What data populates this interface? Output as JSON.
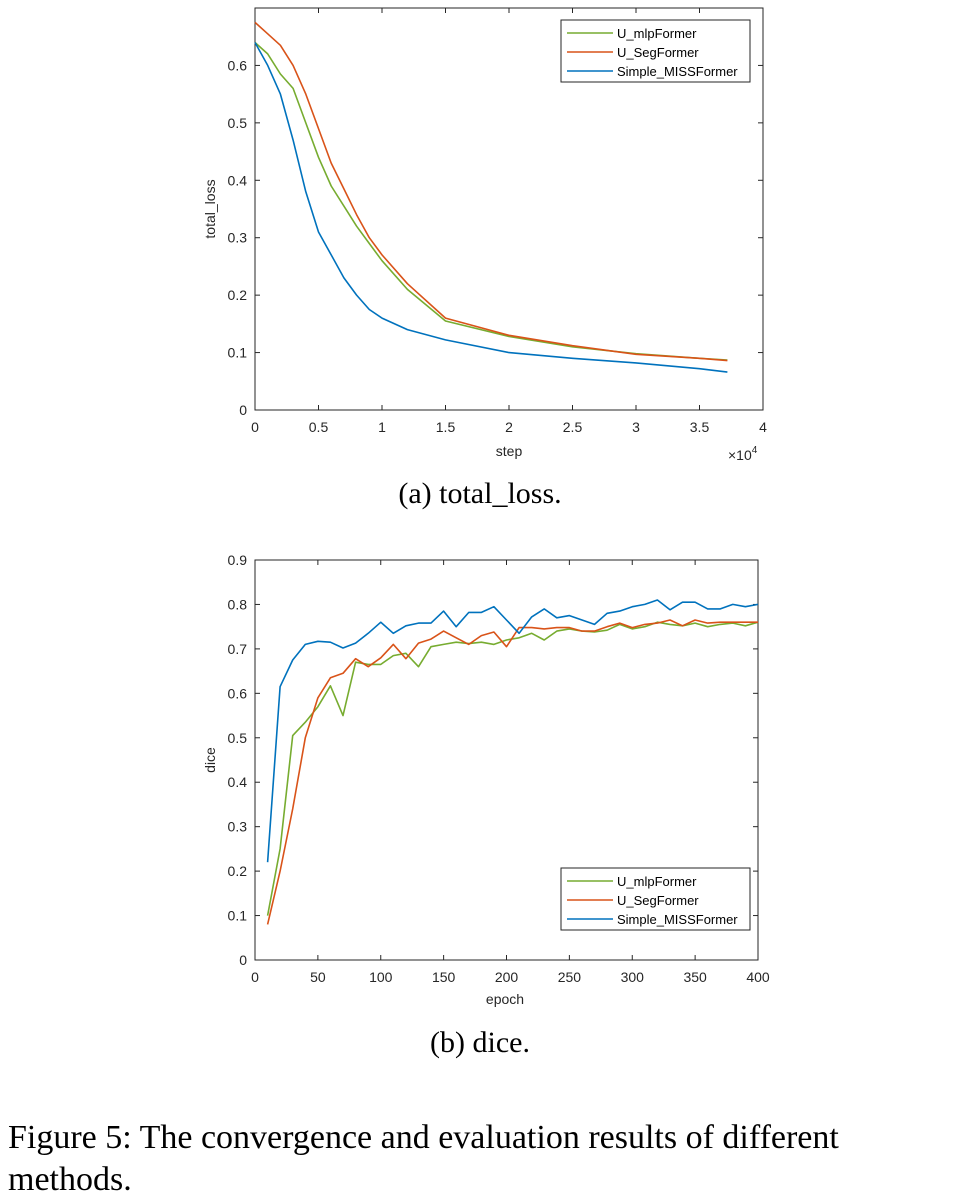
{
  "chart_data": [
    {
      "type": "line",
      "caption": "(a) total_loss.",
      "xlabel": "step",
      "ylabel": "total_loss",
      "x_multiplier": "×10",
      "x_multiplier_exp": "4",
      "xlim": [
        0,
        4
      ],
      "ylim": [
        0,
        0.7
      ],
      "xticks": [
        "0",
        "0.5",
        "1",
        "1.5",
        "2",
        "2.5",
        "3",
        "3.5",
        "4"
      ],
      "yticks": [
        "0",
        "0.1",
        "0.2",
        "0.3",
        "0.4",
        "0.5",
        "0.6"
      ],
      "legend_position": "top-right",
      "series": [
        {
          "name": "U_mlpFormer",
          "color": "#77ac30",
          "x": [
            0,
            0.1,
            0.2,
            0.3,
            0.4,
            0.5,
            0.6,
            0.7,
            0.8,
            0.9,
            1.0,
            1.2,
            1.5,
            2.0,
            2.5,
            3.0,
            3.5,
            3.72
          ],
          "y": [
            0.64,
            0.62,
            0.585,
            0.56,
            0.5,
            0.44,
            0.39,
            0.355,
            0.32,
            0.29,
            0.26,
            0.21,
            0.155,
            0.128,
            0.11,
            0.098,
            0.09,
            0.087
          ]
        },
        {
          "name": "U_SegFormer",
          "color": "#d95319",
          "x": [
            0,
            0.1,
            0.2,
            0.3,
            0.4,
            0.5,
            0.6,
            0.7,
            0.8,
            0.9,
            1.0,
            1.2,
            1.5,
            2.0,
            2.5,
            3.0,
            3.5,
            3.72
          ],
          "y": [
            0.675,
            0.655,
            0.635,
            0.6,
            0.55,
            0.49,
            0.43,
            0.385,
            0.34,
            0.3,
            0.27,
            0.22,
            0.16,
            0.13,
            0.112,
            0.097,
            0.09,
            0.086
          ]
        },
        {
          "name": "Simple_MISSFormer",
          "color": "#0072bd",
          "x": [
            0,
            0.1,
            0.2,
            0.3,
            0.4,
            0.5,
            0.6,
            0.7,
            0.8,
            0.9,
            1.0,
            1.2,
            1.5,
            2.0,
            2.5,
            3.0,
            3.5,
            3.72
          ],
          "y": [
            0.64,
            0.6,
            0.55,
            0.47,
            0.38,
            0.31,
            0.27,
            0.23,
            0.2,
            0.175,
            0.16,
            0.14,
            0.122,
            0.1,
            0.09,
            0.082,
            0.072,
            0.066
          ]
        }
      ]
    },
    {
      "type": "line",
      "caption": "(b) dice.",
      "xlabel": "epoch",
      "ylabel": "dice",
      "xlim": [
        0,
        400
      ],
      "ylim": [
        0,
        0.9
      ],
      "xticks": [
        "0",
        "50",
        "100",
        "150",
        "200",
        "250",
        "300",
        "350",
        "400"
      ],
      "yticks": [
        "0",
        "0.1",
        "0.2",
        "0.3",
        "0.4",
        "0.5",
        "0.6",
        "0.7",
        "0.8",
        "0.9"
      ],
      "legend_position": "bottom-right",
      "series": [
        {
          "name": "U_mlpFormer",
          "color": "#77ac30",
          "x": [
            10,
            20,
            30,
            40,
            50,
            60,
            70,
            80,
            90,
            100,
            110,
            120,
            130,
            140,
            150,
            160,
            170,
            180,
            190,
            200,
            210,
            220,
            230,
            240,
            250,
            260,
            270,
            280,
            290,
            300,
            310,
            320,
            330,
            340,
            350,
            360,
            370,
            380,
            390,
            400
          ],
          "y": [
            0.1,
            0.25,
            0.505,
            0.535,
            0.57,
            0.617,
            0.55,
            0.67,
            0.665,
            0.665,
            0.685,
            0.69,
            0.66,
            0.705,
            0.71,
            0.715,
            0.712,
            0.715,
            0.71,
            0.72,
            0.725,
            0.735,
            0.72,
            0.74,
            0.745,
            0.74,
            0.738,
            0.742,
            0.755,
            0.745,
            0.75,
            0.76,
            0.755,
            0.752,
            0.758,
            0.75,
            0.755,
            0.758,
            0.752,
            0.76
          ]
        },
        {
          "name": "U_SegFormer",
          "color": "#d95319",
          "x": [
            10,
            20,
            30,
            40,
            50,
            60,
            70,
            80,
            90,
            100,
            110,
            120,
            130,
            140,
            150,
            160,
            170,
            180,
            190,
            200,
            210,
            220,
            230,
            240,
            250,
            260,
            270,
            280,
            290,
            300,
            310,
            320,
            330,
            340,
            350,
            360,
            370,
            380,
            390,
            400
          ],
          "y": [
            0.08,
            0.2,
            0.34,
            0.5,
            0.59,
            0.635,
            0.645,
            0.678,
            0.66,
            0.68,
            0.71,
            0.678,
            0.713,
            0.722,
            0.74,
            0.725,
            0.71,
            0.73,
            0.738,
            0.705,
            0.748,
            0.748,
            0.745,
            0.748,
            0.748,
            0.74,
            0.74,
            0.75,
            0.758,
            0.748,
            0.755,
            0.758,
            0.765,
            0.752,
            0.765,
            0.758,
            0.76,
            0.76,
            0.76,
            0.76
          ]
        },
        {
          "name": "Simple_MISSFormer",
          "color": "#0072bd",
          "x": [
            10,
            20,
            30,
            40,
            50,
            60,
            70,
            80,
            90,
            100,
            110,
            120,
            130,
            140,
            150,
            160,
            170,
            180,
            190,
            200,
            210,
            220,
            230,
            240,
            250,
            260,
            270,
            280,
            290,
            300,
            310,
            320,
            330,
            340,
            350,
            360,
            370,
            380,
            390,
            400
          ],
          "y": [
            0.22,
            0.615,
            0.675,
            0.71,
            0.717,
            0.715,
            0.702,
            0.713,
            0.735,
            0.76,
            0.735,
            0.752,
            0.758,
            0.758,
            0.785,
            0.75,
            0.782,
            0.782,
            0.795,
            0.765,
            0.735,
            0.772,
            0.79,
            0.77,
            0.775,
            0.765,
            0.755,
            0.78,
            0.785,
            0.795,
            0.8,
            0.81,
            0.788,
            0.805,
            0.805,
            0.79,
            0.79,
            0.8,
            0.795,
            0.8
          ]
        }
      ]
    }
  ],
  "figure_caption": "Figure 5: The convergence and evaluation results of different methods."
}
